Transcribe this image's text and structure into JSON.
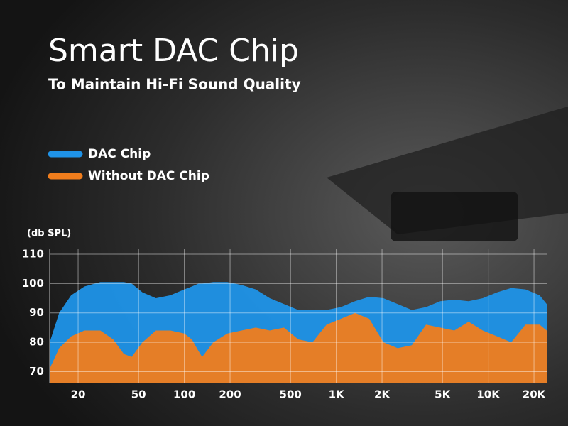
{
  "chart_data": {
    "type": "area",
    "title": "Smart DAC Chip",
    "subtitle": "To Maintain Hi-Fi Sound Quality",
    "y_label": "(db SPL)",
    "x": [
      13,
      15,
      18,
      22,
      28,
      34,
      40,
      45,
      53,
      65,
      81,
      100,
      112,
      124,
      131,
      155,
      192,
      238,
      295,
      365,
      453,
      562,
      697,
      863,
      1072,
      1328,
      1648,
      2042,
      2535,
      3141,
      3899,
      4831,
      5984,
      7430,
      9204,
      11430,
      14160,
      17580,
      21780,
      24260
    ],
    "series": [
      {
        "name": "DAC Chip",
        "color": "#1f93e8",
        "values": [
          80,
          90,
          96,
          99,
          100.5,
          100.5,
          100.5,
          100,
          97,
          95,
          96,
          98,
          99,
          100,
          100,
          100.5,
          100.5,
          99.5,
          98,
          95,
          93,
          91,
          91,
          91,
          92,
          94,
          95.5,
          95,
          93,
          91,
          92,
          94,
          94.5,
          94,
          95,
          97,
          98.5,
          98,
          96,
          93
        ]
      },
      {
        "name": "Without DAC Chip",
        "color": "#f07d1c",
        "values": [
          71,
          78,
          82,
          84,
          84,
          81,
          76,
          75,
          80,
          84,
          84,
          83,
          81,
          77,
          75,
          80,
          83,
          84,
          85,
          84,
          85,
          81,
          80,
          86,
          88,
          90,
          88,
          80,
          78,
          79,
          86,
          85,
          84,
          87,
          84,
          82,
          80,
          86,
          86,
          84
        ]
      }
    ],
    "log_x": true,
    "xlim": [
      13,
      24260
    ],
    "xticks": [
      20,
      50,
      100,
      200,
      500,
      {
        "value": 1000,
        "label": "1K"
      },
      {
        "value": 2000,
        "label": "2K"
      },
      {
        "value": 5000,
        "label": "5K"
      },
      {
        "value": 10000,
        "label": "10K"
      },
      {
        "value": 20000,
        "label": "20K"
      }
    ],
    "ylim": [
      66,
      110
    ],
    "yticks": [
      70,
      80,
      90,
      100,
      110
    ],
    "grid": true
  }
}
